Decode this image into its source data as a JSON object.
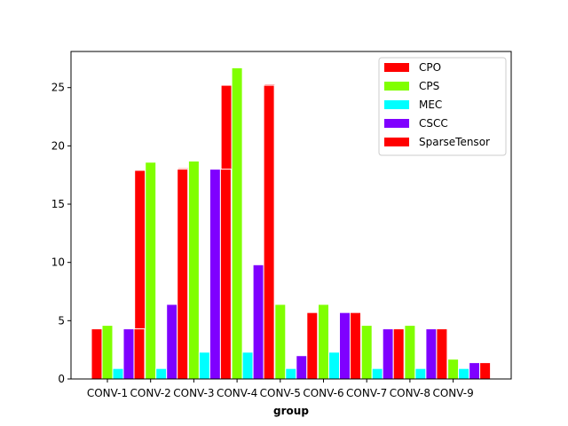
{
  "chart_data": {
    "type": "bar",
    "title": "",
    "xlabel": "group",
    "ylabel": "",
    "categories": [
      "CONV-1",
      "CONV-2",
      "CONV-3",
      "CONV-4",
      "CONV-5",
      "CONV-6",
      "CONV-7",
      "CONV-8",
      "CONV-9"
    ],
    "ylim": [
      0,
      28.1
    ],
    "yticks": [
      0,
      5,
      10,
      15,
      20,
      25
    ],
    "grid": false,
    "legend_position": "top-right",
    "series": [
      {
        "name": "CPO",
        "color": "#ff0000",
        "values": [
          4.3,
          17.9,
          18.1,
          25.2,
          25.3,
          5.7,
          4.3,
          4.3,
          4.3
        ]
      },
      {
        "name": "CPS",
        "color": "#80ff00",
        "values": [
          4.6,
          18.6,
          18.7,
          26.7,
          6.4,
          6.4,
          4.6,
          4.6,
          1.7
        ]
      },
      {
        "name": "MEC",
        "color": "#00ffff",
        "values": [
          0.9,
          0.9,
          2.3,
          2.3,
          0.9,
          2.3,
          0.9,
          0.9,
          0.9
        ]
      },
      {
        "name": "CSCC",
        "color": "#7f00ff",
        "values": [
          4.3,
          6.4,
          18.0,
          9.8,
          2.0,
          5.7,
          4.3,
          4.3,
          1.4
        ]
      },
      {
        "name": "SparseTensor",
        "color": "#ff0000",
        "values": [
          4.3,
          18.0,
          18.0,
          25.2,
          5.7,
          5.7,
          4.3,
          4.3,
          1.4
        ]
      }
    ]
  }
}
